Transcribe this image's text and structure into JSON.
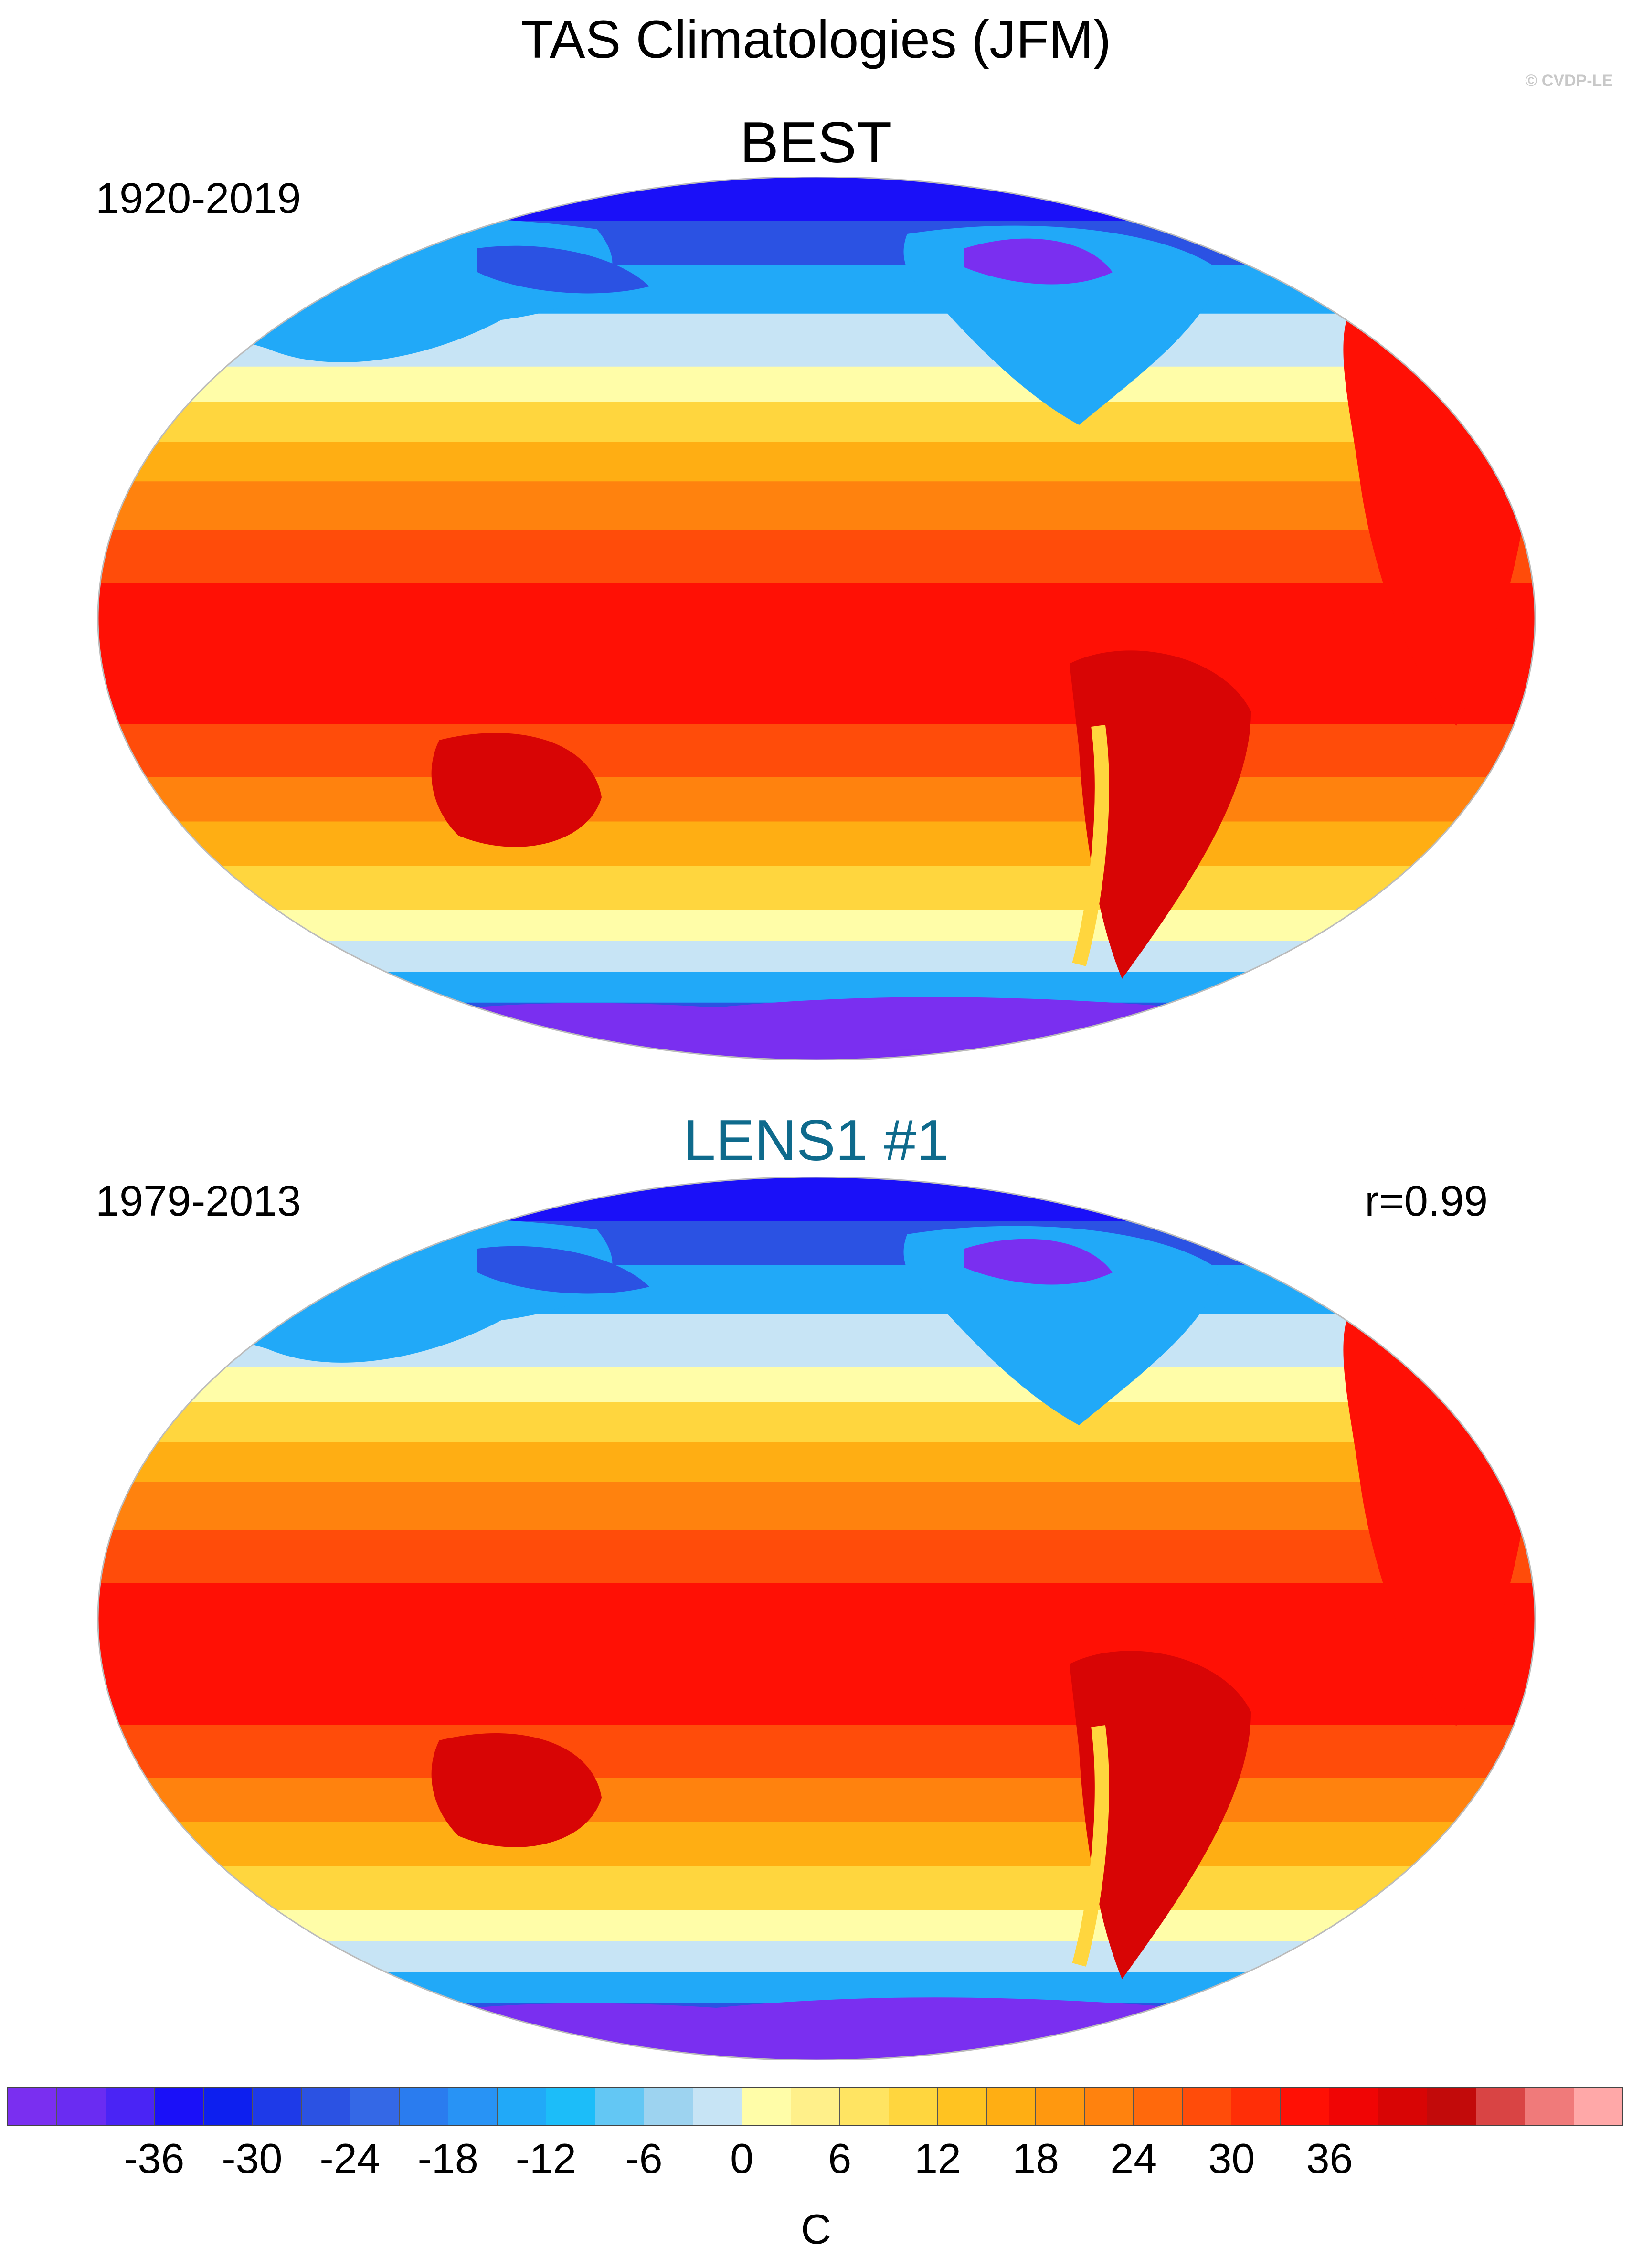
{
  "title": "TAS Climatologies (JFM)",
  "watermark": "© CVDP-LE",
  "panels": [
    {
      "name": "BEST",
      "period": "1920-2019",
      "correlation": "",
      "name_color": "#000000"
    },
    {
      "name": "LENS1 #1",
      "period": "1979-2013",
      "correlation": "r=0.99",
      "name_color": "#0e6a8c"
    }
  ],
  "colorbar": {
    "unit": "C",
    "ticks": [
      "-36",
      "-30",
      "-24",
      "-18",
      "-12",
      "-6",
      "0",
      "6",
      "12",
      "18",
      "24",
      "30",
      "36"
    ],
    "colors": [
      "#7a2ff0",
      "#6a2cf2",
      "#4a24f5",
      "#1a10f8",
      "#0d1fef",
      "#1e3ae8",
      "#2b52e3",
      "#3468e6",
      "#2a7cef",
      "#2893f5",
      "#21a9f8",
      "#1cbdf9",
      "#63c7f4",
      "#9dd3f0",
      "#c7e4f5",
      "#fffda8",
      "#fff08a",
      "#ffe462",
      "#ffd63e",
      "#ffc321",
      "#ffae13",
      "#ff980f",
      "#ff820e",
      "#ff690c",
      "#ff4c0a",
      "#ff2e07",
      "#ff1005",
      "#f00505",
      "#d80505",
      "#c20a0a",
      "#d94444",
      "#f07a7a",
      "#ffa8a8"
    ]
  },
  "map_colors": {
    "polar_dark": "#7a2ff0",
    "polar": "#1a10f8",
    "cold": "#2b52e3",
    "cool": "#21a9f8",
    "icy": "#c7e4f5",
    "mild": "#fffda8",
    "warm_light": "#ffd63e",
    "warm": "#ffae13",
    "hot_light": "#ff820e",
    "hot": "#ff4c0a",
    "hottest": "#ff1005",
    "land_hot": "#d80505"
  }
}
